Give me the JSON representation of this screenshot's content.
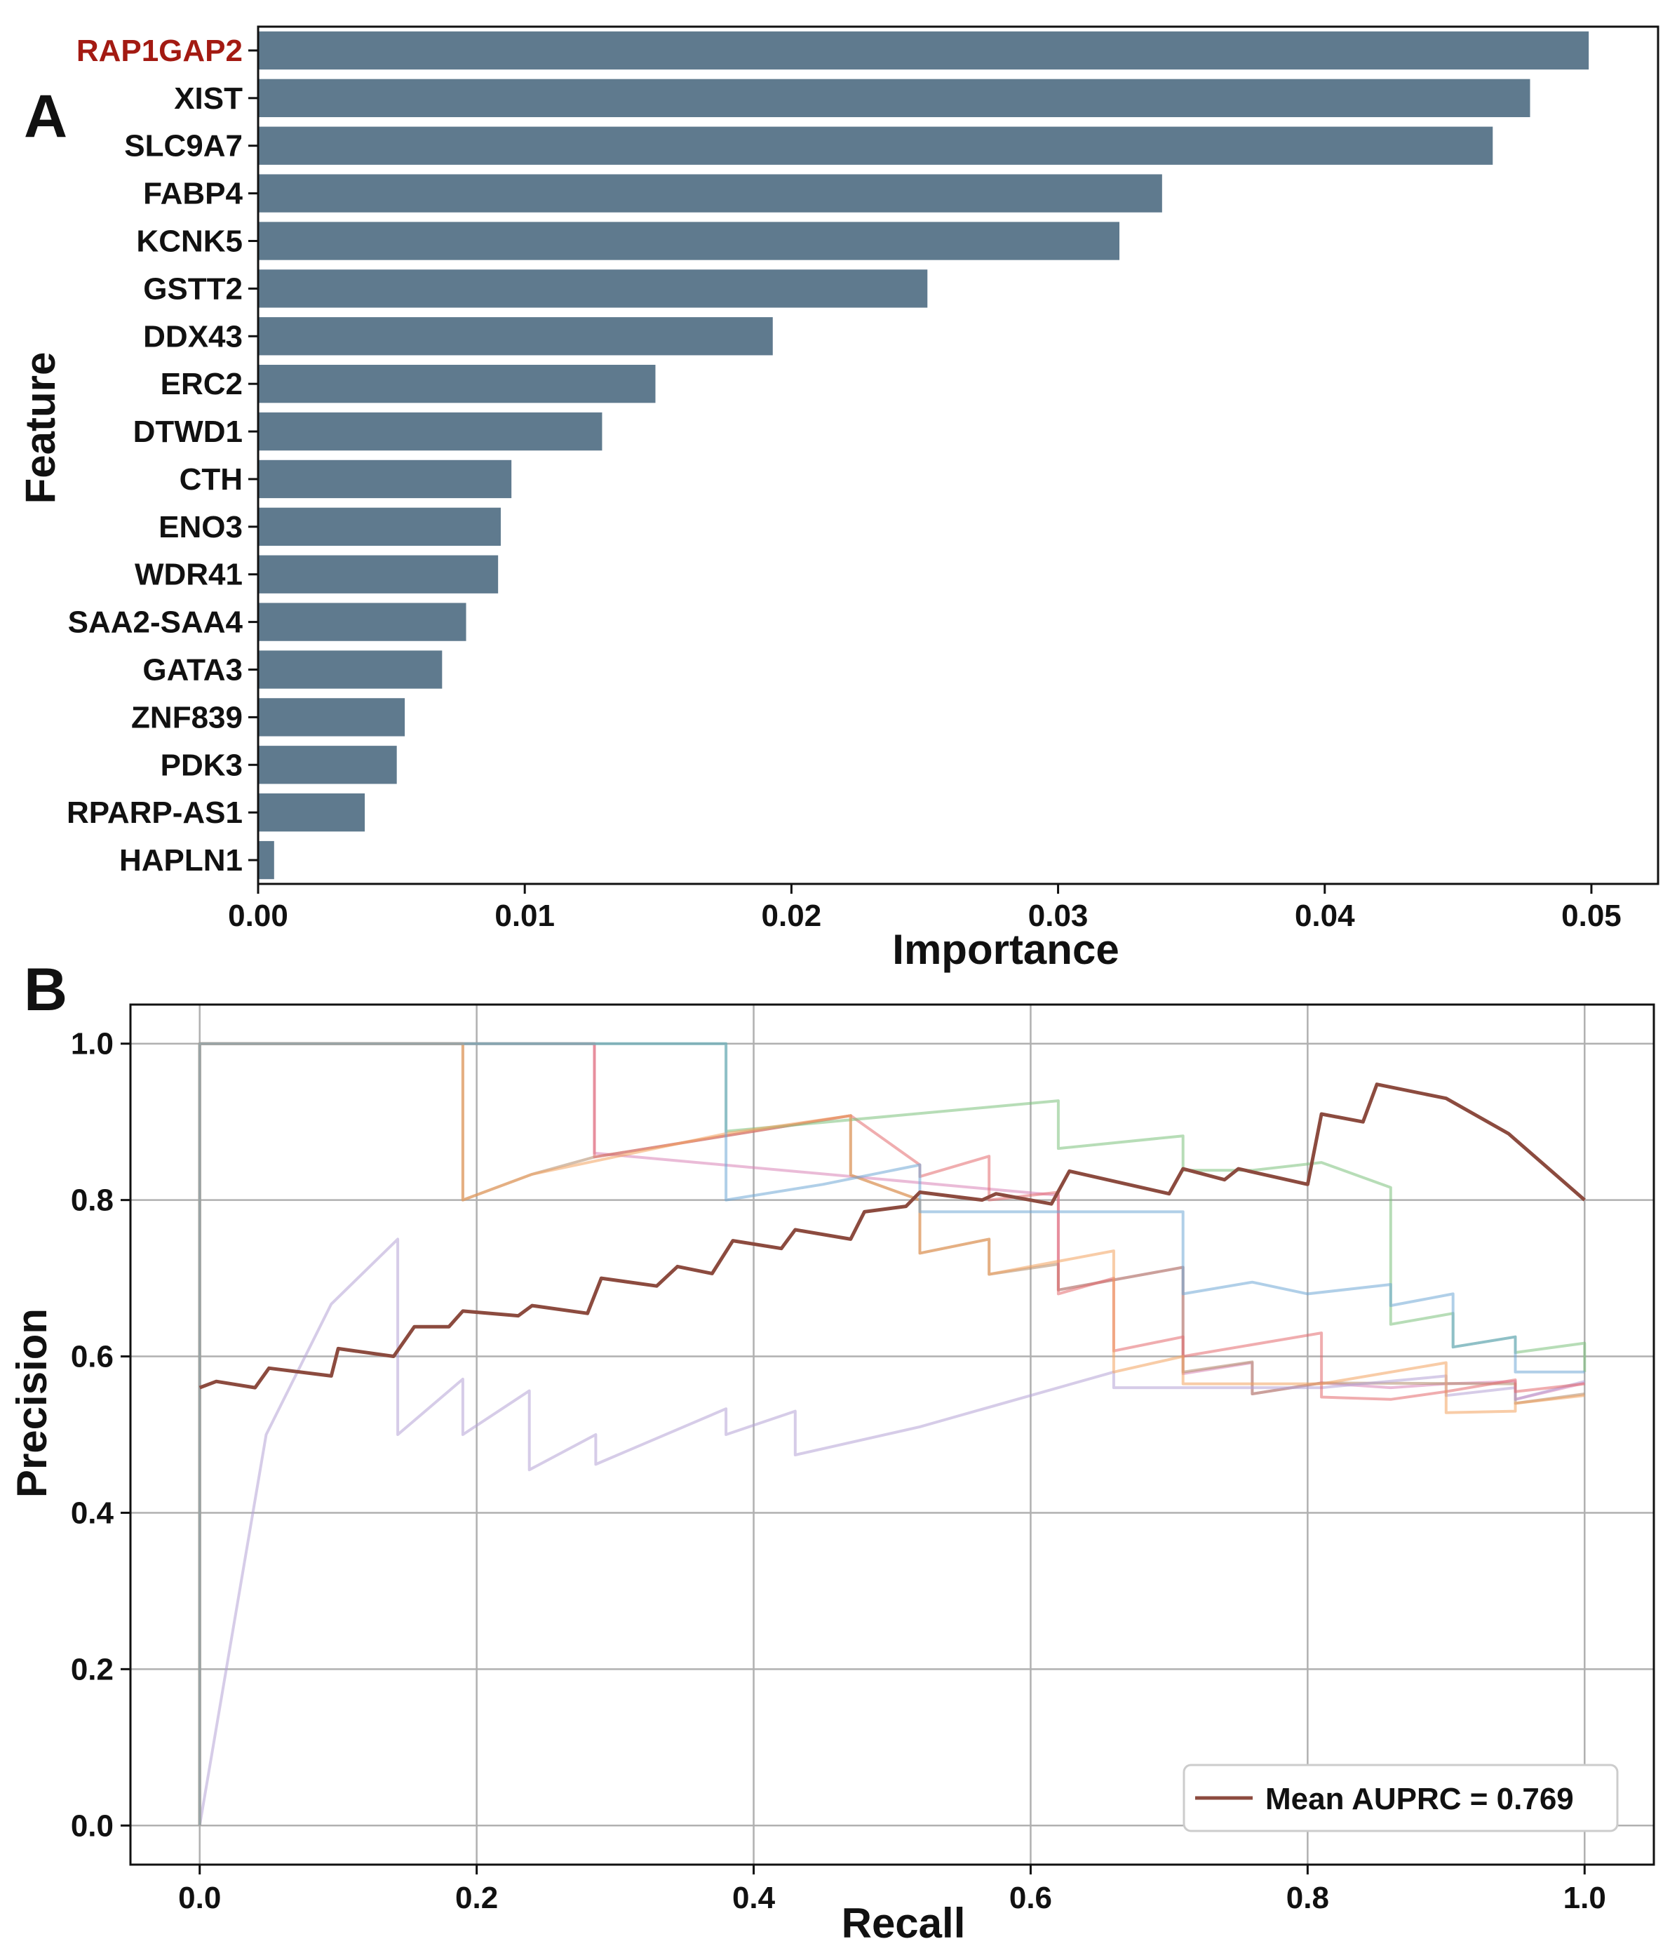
{
  "panels": {
    "a_label": "A",
    "b_label": "B"
  },
  "colors": {
    "bar": "#5f7a8e",
    "highlight_label": "#a31a12",
    "mean_curve": "#8c4b3f",
    "fold_curves": [
      "#6fa8d6",
      "#f3a35f",
      "#7cc17c",
      "#e46a6d",
      "#b5a2d6",
      "#b08a6a",
      "#d983b6"
    ]
  },
  "chart_data": [
    {
      "type": "bar",
      "orientation": "horizontal",
      "categories": [
        "RAP1GAP2",
        "XIST",
        "SLC9A7",
        "FABP4",
        "KCNK5",
        "GSTT2",
        "DDX43",
        "ERC2",
        "DTWD1",
        "CTH",
        "ENO3",
        "WDR41",
        "SAA2-SAA4",
        "GATA3",
        "ZNF839",
        "PDK3",
        "RPARP-AS1",
        "HAPLN1"
      ],
      "values": [
        0.0499,
        0.0477,
        0.0463,
        0.0339,
        0.0323,
        0.0251,
        0.0193,
        0.0149,
        0.0129,
        0.0095,
        0.0091,
        0.009,
        0.0078,
        0.0069,
        0.0055,
        0.0052,
        0.004,
        0.0006
      ],
      "highlight": [
        "RAP1GAP2"
      ],
      "xlabel": "Importance",
      "ylabel": "Feature",
      "xlim": [
        0,
        0.0525
      ],
      "xticks": [
        "0.00",
        "0.01",
        "0.02",
        "0.03",
        "0.04",
        "0.05"
      ],
      "xtick_values": [
        0,
        0.01,
        0.02,
        0.03,
        0.04,
        0.05
      ],
      "grid": false
    },
    {
      "type": "line",
      "xlabel": "Recall",
      "ylabel": "Precision",
      "xlim": [
        -0.05,
        1.05
      ],
      "ylim": [
        -0.05,
        1.05
      ],
      "xticks": [
        "0.0",
        "0.2",
        "0.4",
        "0.6",
        "0.8",
        "1.0"
      ],
      "xtick_values": [
        0,
        0.2,
        0.4,
        0.6,
        0.8,
        1.0
      ],
      "yticks": [
        "0.0",
        "0.2",
        "0.4",
        "0.6",
        "0.8",
        "1.0"
      ],
      "ytick_values": [
        0,
        0.2,
        0.4,
        0.6,
        0.8,
        1.0
      ],
      "grid": true,
      "legend_position": "bottom-right",
      "legend": [
        "Mean AUPRC = 0.769"
      ],
      "series": [
        {
          "name": "Mean AUPRC = 0.769",
          "points": [
            [
              0,
              0.56
            ],
            [
              0.012,
              0.568
            ],
            [
              0.04,
              0.56
            ],
            [
              0.05,
              0.585
            ],
            [
              0.095,
              0.575
            ],
            [
              0.1,
              0.61
            ],
            [
              0.14,
              0.6
            ],
            [
              0.155,
              0.638
            ],
            [
              0.18,
              0.638
            ],
            [
              0.19,
              0.658
            ],
            [
              0.23,
              0.652
            ],
            [
              0.24,
              0.665
            ],
            [
              0.28,
              0.655
            ],
            [
              0.29,
              0.7
            ],
            [
              0.33,
              0.69
            ],
            [
              0.345,
              0.715
            ],
            [
              0.37,
              0.706
            ],
            [
              0.385,
              0.748
            ],
            [
              0.42,
              0.738
            ],
            [
              0.43,
              0.762
            ],
            [
              0.47,
              0.75
            ],
            [
              0.48,
              0.785
            ],
            [
              0.51,
              0.792
            ],
            [
              0.52,
              0.81
            ],
            [
              0.565,
              0.8
            ],
            [
              0.575,
              0.808
            ],
            [
              0.615,
              0.795
            ],
            [
              0.628,
              0.837
            ],
            [
              0.7,
              0.808
            ],
            [
              0.71,
              0.84
            ],
            [
              0.74,
              0.826
            ],
            [
              0.75,
              0.84
            ],
            [
              0.8,
              0.82
            ],
            [
              0.81,
              0.91
            ],
            [
              0.84,
              0.9
            ],
            [
              0.85,
              0.948
            ],
            [
              0.9,
              0.93
            ],
            [
              0.93,
              0.9
            ],
            [
              0.945,
              0.885
            ],
            [
              1.0,
              0.8
            ]
          ]
        },
        {
          "points": [
            [
              0,
              0
            ],
            [
              0,
              1
            ],
            [
              0.38,
              1
            ],
            [
              0.38,
              0.8
            ],
            [
              0.45,
              0.82
            ],
            [
              0.52,
              0.845
            ],
            [
              0.52,
              0.785
            ],
            [
              0.71,
              0.785
            ],
            [
              0.71,
              0.68
            ],
            [
              0.76,
              0.695
            ],
            [
              0.8,
              0.68
            ],
            [
              0.86,
              0.692
            ],
            [
              0.86,
              0.665
            ],
            [
              0.905,
              0.68
            ],
            [
              0.905,
              0.612
            ],
            [
              0.95,
              0.625
            ],
            [
              0.95,
              0.58
            ],
            [
              1.0,
              0.58
            ]
          ]
        },
        {
          "points": [
            [
              0,
              0
            ],
            [
              0,
              1
            ],
            [
              0.19,
              1
            ],
            [
              0.19,
              0.8
            ],
            [
              0.24,
              0.833
            ],
            [
              0.38,
              0.885
            ],
            [
              0.47,
              0.908
            ],
            [
              0.47,
              0.832
            ],
            [
              0.52,
              0.8
            ],
            [
              0.52,
              0.732
            ],
            [
              0.57,
              0.75
            ],
            [
              0.57,
              0.705
            ],
            [
              0.66,
              0.735
            ],
            [
              0.66,
              0.58
            ],
            [
              0.71,
              0.6
            ],
            [
              0.71,
              0.565
            ],
            [
              0.81,
              0.565
            ],
            [
              0.9,
              0.592
            ],
            [
              0.9,
              0.528
            ],
            [
              0.95,
              0.53
            ],
            [
              0.95,
              0.54
            ],
            [
              1.0,
              0.55
            ]
          ]
        },
        {
          "points": [
            [
              0,
              0
            ],
            [
              0,
              1
            ],
            [
              0.38,
              1
            ],
            [
              0.38,
              0.888
            ],
            [
              0.62,
              0.927
            ],
            [
              0.62,
              0.866
            ],
            [
              0.71,
              0.882
            ],
            [
              0.71,
              0.838
            ],
            [
              0.76,
              0.838
            ],
            [
              0.81,
              0.848
            ],
            [
              0.86,
              0.816
            ],
            [
              0.86,
              0.641
            ],
            [
              0.905,
              0.655
            ],
            [
              0.905,
              0.612
            ],
            [
              0.95,
              0.625
            ],
            [
              0.95,
              0.605
            ],
            [
              1.0,
              0.617
            ],
            [
              1.0,
              0.58
            ]
          ]
        },
        {
          "points": [
            [
              0,
              0
            ],
            [
              0,
              1
            ],
            [
              0.285,
              1
            ],
            [
              0.285,
              0.855
            ],
            [
              0.47,
              0.908
            ],
            [
              0.52,
              0.845
            ],
            [
              0.52,
              0.83
            ],
            [
              0.57,
              0.856
            ],
            [
              0.57,
              0.8
            ],
            [
              0.62,
              0.81
            ],
            [
              0.62,
              0.68
            ],
            [
              0.66,
              0.7
            ],
            [
              0.66,
              0.607
            ],
            [
              0.71,
              0.625
            ],
            [
              0.71,
              0.6
            ],
            [
              0.81,
              0.63
            ],
            [
              0.81,
              0.548
            ],
            [
              0.86,
              0.545
            ],
            [
              0.9,
              0.555
            ],
            [
              0.95,
              0.57
            ],
            [
              0.95,
              0.555
            ],
            [
              1.0,
              0.565
            ]
          ]
        },
        {
          "points": [
            [
              0,
              0
            ],
            [
              0.048,
              0.5
            ],
            [
              0.095,
              0.667
            ],
            [
              0.143,
              0.75
            ],
            [
              0.143,
              0.5
            ],
            [
              0.19,
              0.571
            ],
            [
              0.19,
              0.5
            ],
            [
              0.238,
              0.556
            ],
            [
              0.238,
              0.455
            ],
            [
              0.286,
              0.5
            ],
            [
              0.286,
              0.462
            ],
            [
              0.38,
              0.533
            ],
            [
              0.38,
              0.5
            ],
            [
              0.43,
              0.53
            ],
            [
              0.43,
              0.474
            ],
            [
              0.52,
              0.51
            ],
            [
              0.66,
              0.58
            ],
            [
              0.66,
              0.56
            ],
            [
              0.81,
              0.56
            ],
            [
              0.9,
              0.575
            ],
            [
              0.9,
              0.55
            ],
            [
              0.95,
              0.56
            ],
            [
              0.95,
              0.545
            ],
            [
              1.0,
              0.568
            ]
          ]
        },
        {
          "points": [
            [
              0,
              0
            ],
            [
              0,
              1
            ],
            [
              0.19,
              1
            ],
            [
              0.19,
              0.8
            ],
            [
              0.24,
              0.833
            ],
            [
              0.285,
              0.855
            ],
            [
              0.47,
              0.908
            ],
            [
              0.47,
              0.832
            ],
            [
              0.52,
              0.8
            ],
            [
              0.52,
              0.732
            ],
            [
              0.57,
              0.75
            ],
            [
              0.57,
              0.705
            ],
            [
              0.62,
              0.718
            ],
            [
              0.62,
              0.685
            ],
            [
              0.71,
              0.714
            ],
            [
              0.71,
              0.58
            ],
            [
              0.76,
              0.593
            ],
            [
              0.76,
              0.552
            ],
            [
              0.81,
              0.566
            ],
            [
              0.95,
              0.565
            ],
            [
              0.95,
              0.54
            ],
            [
              1.0,
              0.552
            ]
          ]
        },
        {
          "points": [
            [
              0,
              0
            ],
            [
              0,
              1
            ],
            [
              0.285,
              1
            ],
            [
              0.285,
              0.86
            ],
            [
              0.62,
              0.806
            ],
            [
              0.62,
              0.685
            ],
            [
              0.71,
              0.714
            ],
            [
              0.71,
              0.578
            ],
            [
              0.76,
              0.592
            ],
            [
              0.76,
              0.552
            ],
            [
              0.81,
              0.566
            ],
            [
              0.86,
              0.56
            ],
            [
              0.9,
              0.565
            ],
            [
              0.95,
              0.568
            ],
            [
              0.95,
              0.545
            ],
            [
              1.0,
              0.566
            ]
          ]
        }
      ]
    }
  ]
}
